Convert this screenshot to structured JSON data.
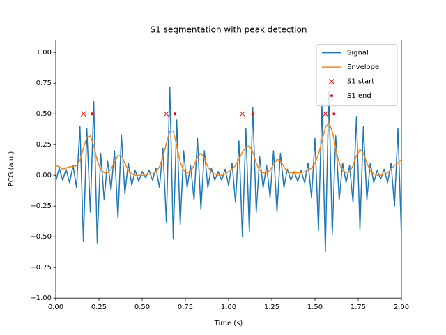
{
  "chart_data": {
    "type": "line",
    "title": "S1 segmentation with peak detection",
    "xlabel": "Time (s)",
    "ylabel": "PCG (a.u.)",
    "xlim": [
      0,
      2
    ],
    "ylim": [
      -1,
      1.1
    ],
    "xticks": [
      {
        "value": 0,
        "label": "0.00"
      },
      {
        "value": 0.25,
        "label": "0.25"
      },
      {
        "value": 0.5,
        "label": "0.50"
      },
      {
        "value": 0.75,
        "label": "0.75"
      },
      {
        "value": 1,
        "label": "1.00"
      },
      {
        "value": 1.25,
        "label": "1.25"
      },
      {
        "value": 1.5,
        "label": "1.50"
      },
      {
        "value": 1.75,
        "label": "1.75"
      },
      {
        "value": 2,
        "label": "2.00"
      }
    ],
    "yticks": [
      {
        "value": -1,
        "label": "−1.00"
      },
      {
        "value": -0.75,
        "label": "−0.75"
      },
      {
        "value": -0.5,
        "label": "−0.50"
      },
      {
        "value": -0.25,
        "label": "−0.25"
      },
      {
        "value": 0,
        "label": "0.00"
      },
      {
        "value": 0.25,
        "label": "0.25"
      },
      {
        "value": 0.5,
        "label": "0.50"
      },
      {
        "value": 0.75,
        "label": "0.75"
      },
      {
        "value": 1,
        "label": "1.00"
      }
    ],
    "legend": "upper right",
    "x": [
      0,
      0.02,
      0.04,
      0.06,
      0.08,
      0.1,
      0.12,
      0.14,
      0.16,
      0.18,
      0.2,
      0.22,
      0.24,
      0.26,
      0.28,
      0.3,
      0.32,
      0.34,
      0.36,
      0.38,
      0.4,
      0.42,
      0.44,
      0.46,
      0.48,
      0.5,
      0.52,
      0.54,
      0.56,
      0.58,
      0.6,
      0.62,
      0.64,
      0.66,
      0.68,
      0.7,
      0.72,
      0.74,
      0.76,
      0.78,
      0.8,
      0.82,
      0.84,
      0.86,
      0.88,
      0.9,
      0.92,
      0.94,
      0.96,
      0.98,
      1,
      1.02,
      1.04,
      1.06,
      1.08,
      1.1,
      1.12,
      1.14,
      1.16,
      1.18,
      1.2,
      1.22,
      1.24,
      1.26,
      1.28,
      1.3,
      1.32,
      1.34,
      1.36,
      1.38,
      1.4,
      1.42,
      1.44,
      1.46,
      1.48,
      1.5,
      1.52,
      1.54,
      1.56,
      1.58,
      1.6,
      1.62,
      1.64,
      1.66,
      1.68,
      1.7,
      1.72,
      1.74,
      1.76,
      1.78,
      1.8,
      1.82,
      1.84,
      1.86,
      1.88,
      1.9,
      1.92,
      1.94,
      1.96,
      1.98,
      2
    ],
    "series": [
      {
        "name": "Signal",
        "kind": "line",
        "color": "#1f77b4",
        "values": [
          -0.05,
          0.06,
          -0.04,
          0.05,
          -0.06,
          0.08,
          -0.1,
          0.4,
          -0.54,
          0.38,
          -0.3,
          0.6,
          -0.55,
          0.18,
          -0.2,
          0.12,
          -0.12,
          0.2,
          -0.35,
          0.33,
          -0.15,
          0.1,
          -0.08,
          0.04,
          -0.05,
          0.03,
          -0.02,
          0.04,
          -0.04,
          0.06,
          -0.1,
          0.22,
          -0.38,
          0.72,
          -0.52,
          0.45,
          -0.4,
          0.2,
          -0.1,
          0.08,
          -0.2,
          0.3,
          -0.28,
          0.2,
          -0.1,
          0.06,
          -0.04,
          0.03,
          -0.04,
          0.05,
          -0.08,
          0.1,
          -0.22,
          0.28,
          -0.5,
          0.38,
          -0.46,
          0.55,
          -0.3,
          0.15,
          -0.1,
          0.08,
          -0.18,
          0.2,
          -0.3,
          0.18,
          -0.1,
          0.05,
          -0.04,
          0.03,
          -0.05,
          0.04,
          -0.06,
          0.1,
          -0.18,
          0.3,
          -0.45,
          0.58,
          -0.62,
          0.68,
          -0.48,
          0.32,
          -0.2,
          0.1,
          -0.06,
          0.08,
          -0.22,
          0.48,
          -0.44,
          0.4,
          -0.2,
          0.1,
          -0.06,
          0.04,
          -0.03,
          0.05,
          -0.06,
          0.1,
          -0.25,
          0.38,
          -0.5
        ]
      },
      {
        "name": "Envelope",
        "kind": "line",
        "color": "#ff7f0e",
        "values": [
          0.08,
          0.07,
          0.05,
          0.06,
          0.07,
          0.07,
          0.08,
          0.12,
          0.22,
          0.31,
          0.32,
          0.24,
          0.12,
          0.05,
          0.02,
          0.02,
          0.05,
          0.11,
          0.16,
          0.16,
          0.1,
          0.04,
          0.01,
          0,
          0,
          0,
          0,
          0.01,
          0.01,
          0.03,
          0.07,
          0.15,
          0.26,
          0.36,
          0.36,
          0.24,
          0.11,
          0.04,
          0.02,
          0.03,
          0.08,
          0.15,
          0.18,
          0.14,
          0.07,
          0.03,
          0.01,
          0,
          0,
          0.01,
          0.03,
          0.05,
          0.08,
          0.13,
          0.19,
          0.23,
          0.24,
          0.19,
          0.1,
          0.04,
          0.02,
          0.02,
          0.04,
          0.09,
          0.13,
          0.12,
          0.07,
          0.03,
          0.02,
          0.02,
          0.02,
          0.02,
          0.03,
          0.04,
          0.06,
          0.1,
          0.17,
          0.28,
          0.39,
          0.43,
          0.36,
          0.22,
          0.1,
          0.04,
          0.02,
          0.03,
          0.08,
          0.16,
          0.21,
          0.18,
          0.1,
          0.04,
          0.01,
          0,
          0,
          0.01,
          0.02,
          0.05,
          0.08,
          0.1,
          0.13
        ]
      },
      {
        "name": "S1 start",
        "kind": "cross",
        "color": "#ff0000",
        "x": [
          0.16,
          0.64,
          1.08,
          1.56
        ],
        "values": [
          0.5,
          0.5,
          0.5,
          0.5
        ]
      },
      {
        "name": "S1 end",
        "kind": "dot",
        "color": "#ff0000",
        "x": [
          0.21,
          0.69,
          1.14,
          1.61
        ],
        "values": [
          0.5,
          0.5,
          0.5,
          0.5
        ]
      }
    ]
  }
}
